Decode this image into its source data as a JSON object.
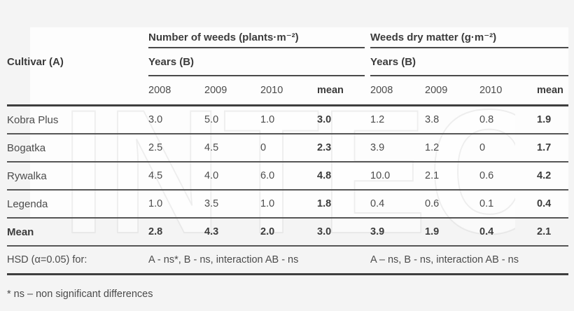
{
  "page": {
    "background": "#f4f4f4",
    "footnote": "* ns – non significant differences"
  },
  "watermark": "INTECH",
  "table": {
    "cultivar_header": "Cultivar (A)",
    "groups": [
      {
        "title": "Number of weeds (plants·m⁻²)",
        "years_label": "Years (B)"
      },
      {
        "title": "Weeds dry matter (g·m⁻²)",
        "years_label": "Years (B)"
      }
    ],
    "year_columns": [
      "2008",
      "2009",
      "2010",
      "mean"
    ],
    "rows": [
      {
        "cultivar": "Kobra Plus",
        "weeds": [
          "3.0",
          "5.0",
          "1.0"
        ],
        "weeds_mean": "3.0",
        "dry": [
          "1.2",
          "3.8",
          "0.8"
        ],
        "dry_mean": "1.9"
      },
      {
        "cultivar": "Bogatka",
        "weeds": [
          "2.5",
          "4.5",
          "0"
        ],
        "weeds_mean": "2.3",
        "dry": [
          "3.9",
          "1.2",
          "0"
        ],
        "dry_mean": "1.7"
      },
      {
        "cultivar": "Rywalka",
        "weeds": [
          "4.5",
          "4.0",
          "6.0"
        ],
        "weeds_mean": "4.8",
        "dry": [
          "10.0",
          "2.1",
          "0.6"
        ],
        "dry_mean": "4.2"
      },
      {
        "cultivar": "Legenda",
        "weeds": [
          "1.0",
          "3.5",
          "1.0"
        ],
        "weeds_mean": "1.8",
        "dry": [
          "0.4",
          "0.6",
          "0.1"
        ],
        "dry_mean": "0.4"
      }
    ],
    "mean_row": {
      "label": "Mean",
      "weeds": [
        "2.8",
        "4.3",
        "2.0"
      ],
      "weeds_mean": "3.0",
      "dry": [
        "3.9",
        "1.9",
        "0.4"
      ],
      "dry_mean": "2.1"
    },
    "hsd_row": {
      "label": "HSD (α=0.05) for:",
      "left": "A - ns*, B - ns, interaction AB - ns",
      "right": "A – ns, B - ns, interaction AB - ns"
    }
  }
}
